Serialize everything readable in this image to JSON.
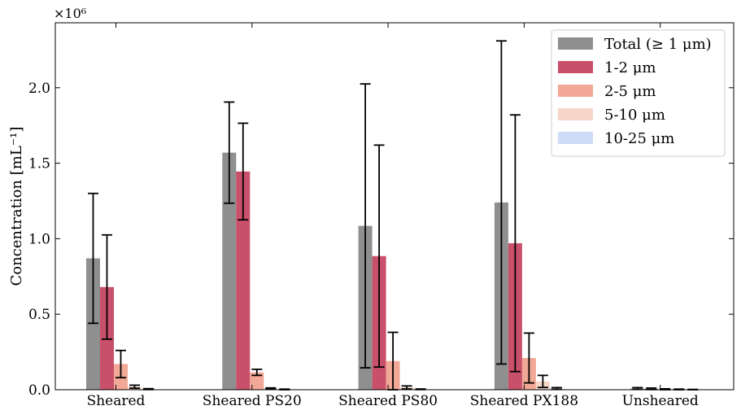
{
  "chart_data": {
    "type": "bar",
    "title": "",
    "xlabel": "",
    "ylabel": "Concentration [mL⁻¹]",
    "scale_label": "×10⁶",
    "ylim": [
      0,
      2.43
    ],
    "yticks": [
      0.0,
      0.5,
      1.0,
      1.5,
      2.0
    ],
    "ytick_labels": [
      "0.0",
      "0.5",
      "1.0",
      "1.5",
      "2.0"
    ],
    "categories": [
      "Sheared",
      "Sheared PS20",
      "Sheared PS80",
      "Sheared PX188",
      "Unsheared"
    ],
    "grid": false,
    "legend_position": "top-right",
    "series": [
      {
        "name": "Total (≥ 1 μm)",
        "color": "#8f8f8f",
        "values": [
          0.87,
          1.57,
          1.085,
          1.24,
          0.008
        ],
        "errors": [
          0.43,
          0.335,
          0.94,
          1.07,
          0.006
        ]
      },
      {
        "name": "1-2 μm",
        "color": "#c9506a",
        "values": [
          0.68,
          1.445,
          0.885,
          0.97,
          0.006
        ],
        "errors": [
          0.345,
          0.32,
          0.735,
          0.85,
          0.005
        ]
      },
      {
        "name": "2-5 μm",
        "color": "#f2a896",
        "values": [
          0.17,
          0.115,
          0.19,
          0.21,
          0.003
        ],
        "errors": [
          0.09,
          0.02,
          0.19,
          0.165,
          0.003
        ]
      },
      {
        "name": "5-10 μm",
        "color": "#f5d6c9",
        "values": [
          0.02,
          0.008,
          0.015,
          0.055,
          0.002
        ],
        "errors": [
          0.01,
          0.004,
          0.01,
          0.04,
          0.002
        ]
      },
      {
        "name": "10-25 μm",
        "color": "#cfdcf5",
        "values": [
          0.004,
          0.002,
          0.003,
          0.008,
          0.001
        ],
        "errors": [
          0.003,
          0.002,
          0.002,
          0.006,
          0.001
        ]
      }
    ]
  }
}
